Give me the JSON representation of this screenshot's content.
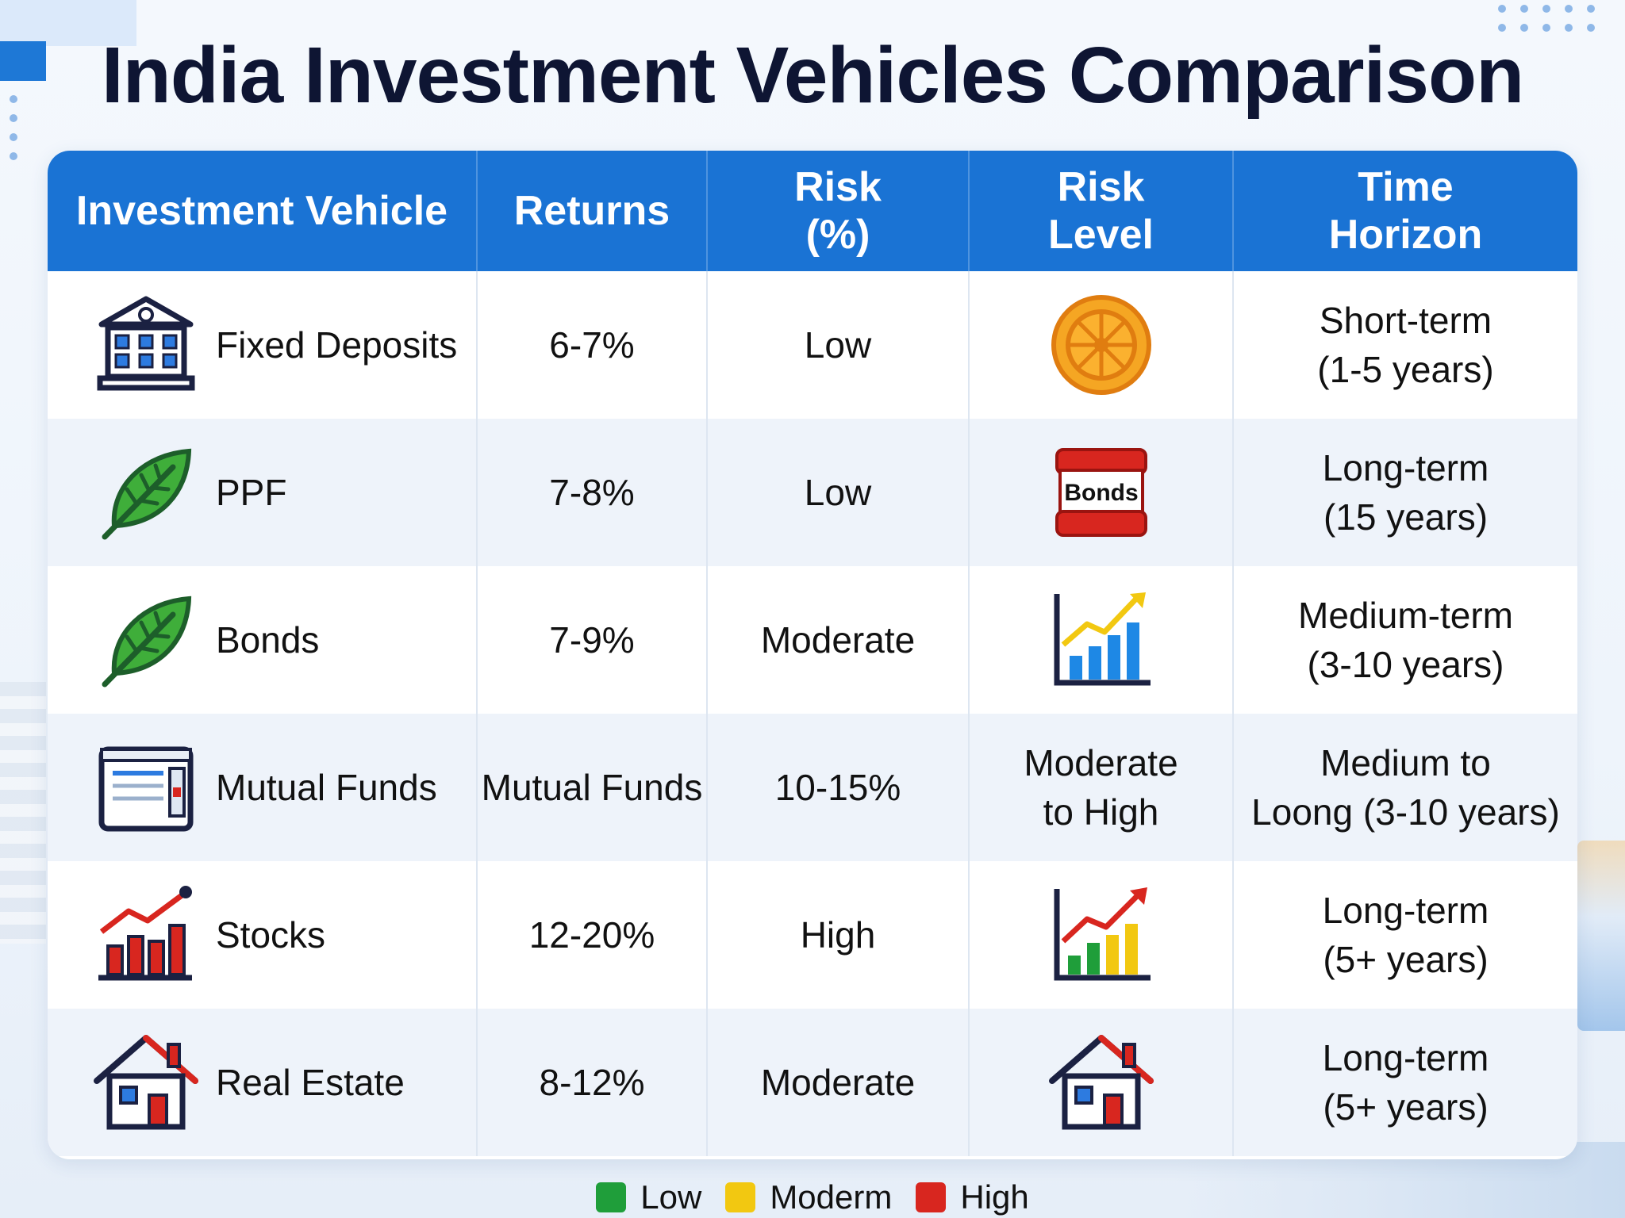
{
  "title": "India Investment Vehicles Comparison",
  "headers": [
    "Investment Vehicle",
    "Returns",
    "Risk\n(%)",
    "Risk\nLevel",
    "Time\nHorizon"
  ],
  "rows": [
    {
      "vehicle": "Fixed Deposits",
      "icon": "bank-icon",
      "returns": "6-7%",
      "risk": "Low",
      "risk_level_icon": "coin-icon",
      "horizon": "Short-term\n(1-5 years)"
    },
    {
      "vehicle": "PPF",
      "icon": "leaf-icon",
      "returns": "7-8%",
      "risk": "Low",
      "risk_level_icon": "bonds-badge-icon",
      "risk_level_label": "Bonds",
      "horizon": "Long-term\n(15 years)"
    },
    {
      "vehicle": "Bonds",
      "icon": "leaf-icon",
      "returns": "7-9%",
      "risk": "Moderate",
      "risk_level_icon": "blue-growth-chart-icon",
      "horizon": "Medium-term\n(3-10 years)"
    },
    {
      "vehicle": "Mutual Funds",
      "icon": "document-icon",
      "returns": "Mutual Funds",
      "risk": "10-15%",
      "risk_level_text": "Moderate\nto High",
      "horizon": "Medium to\nLoong (3-10 years)"
    },
    {
      "vehicle": "Stocks",
      "icon": "stocks-chart-icon",
      "returns": "12-20%",
      "risk": "High",
      "risk_level_icon": "colored-growth-chart-icon",
      "horizon": "Long-term\n(5+ years)"
    },
    {
      "vehicle": "Real Estate",
      "icon": "house-icon",
      "returns": "8-12%",
      "risk": "Moderate",
      "risk_level_icon": "house-icon",
      "horizon": "Long-term\n(5+ years)"
    }
  ],
  "legend": [
    {
      "label": "Low",
      "color": "#1f9e3a"
    },
    {
      "label": "Moderm",
      "color": "#f2c811"
    },
    {
      "label": "High",
      "color": "#d8261f"
    }
  ],
  "colors": {
    "header_bg": "#1a73d4",
    "title": "#0e1533",
    "accent_blue": "#1a73d4"
  }
}
